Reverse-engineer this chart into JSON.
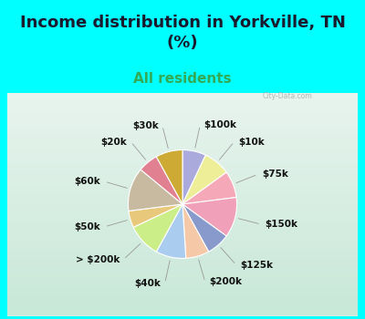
{
  "title": "Income distribution in Yorkville, TN\n(%)",
  "subtitle": "All residents",
  "bg_cyan": "#00FFFF",
  "chart_bg_top": "#d0ede0",
  "chart_bg_bottom": "#e8f8f0",
  "labels": [
    "$100k",
    "$10k",
    "$75k",
    "$150k",
    "$125k",
    "$200k",
    "$40k",
    "> $200k",
    "$50k",
    "$60k",
    "$20k",
    "$30k"
  ],
  "sizes": [
    7,
    8,
    8,
    12,
    7,
    7,
    9,
    10,
    5,
    13,
    6,
    8
  ],
  "colors": [
    "#aaaadd",
    "#eeee99",
    "#f4a8b8",
    "#f0a0b8",
    "#8899cc",
    "#f5c8a8",
    "#aaccee",
    "#ccee88",
    "#e8c87a",
    "#c8baa0",
    "#e08090",
    "#ccaa33"
  ],
  "title_fontsize": 13,
  "subtitle_fontsize": 11,
  "subtitle_color": "#33aa55",
  "title_color": "#1a1a2e",
  "label_fontsize": 7.5
}
